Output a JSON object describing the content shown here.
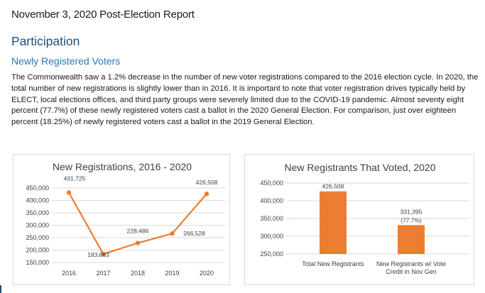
{
  "document": {
    "title": "November 3, 2020 Post-Election Report",
    "heading": "Participation",
    "subheading": "Newly Registered Voters",
    "paragraph": "The Commonwealth saw a 1.2% decrease in the number of new voter registrations compared to the 2016 election cycle. In 2020, the total number of new registrations is slightly lower than in 2016. It is important to note that voter registration drives typically held by ELECT, local elections offices, and third party groups were severely limited due to the COVID-19 pandemic. Almost seventy eight percent (77.7%) of these newly registered voters cast a ballot in the 2020 General Election. For comparison, just over eighteen percent (18.25%) of newly registered voters cast a ballot in the 2019 General Election."
  },
  "colors": {
    "series": "#ed7d31",
    "grid": "#d9d9d9",
    "text": "#404040"
  },
  "chart_data": [
    {
      "type": "line",
      "title": "New Registrations, 2016 - 2020",
      "categories": [
        "2016",
        "2017",
        "2018",
        "2019",
        "2020"
      ],
      "values": [
        431725,
        183683,
        228486,
        266528,
        426508
      ],
      "data_labels": [
        "431,725",
        "183,683",
        "228,486",
        "266,528",
        "426,508"
      ],
      "ylim": [
        150000,
        450000
      ],
      "yticks": [
        150000,
        200000,
        250000,
        300000,
        350000,
        400000,
        450000
      ],
      "ytick_labels": [
        "150,000",
        "200,000",
        "250,000",
        "300,000",
        "350,000",
        "400,000",
        "450,000"
      ],
      "grid": true
    },
    {
      "type": "bar",
      "title": "New Registrants That Voted, 2020",
      "categories": [
        "Total New Registrants",
        "New Registrants w/ Vote Credit in Nov Gen"
      ],
      "category_lines": [
        [
          "Total New Registrants"
        ],
        [
          "New Registrants w/ Vote",
          "Credit in Nov Gen"
        ]
      ],
      "values": [
        426508,
        331395
      ],
      "data_labels": [
        [
          "426,508"
        ],
        [
          "331,395",
          "(77.7%)"
        ]
      ],
      "ylim": [
        250000,
        450000
      ],
      "yticks": [
        250000,
        300000,
        350000,
        400000,
        450000
      ],
      "ytick_labels": [
        "250,000",
        "300,000",
        "350,000",
        "400,000",
        "450,000"
      ],
      "grid": true
    }
  ]
}
